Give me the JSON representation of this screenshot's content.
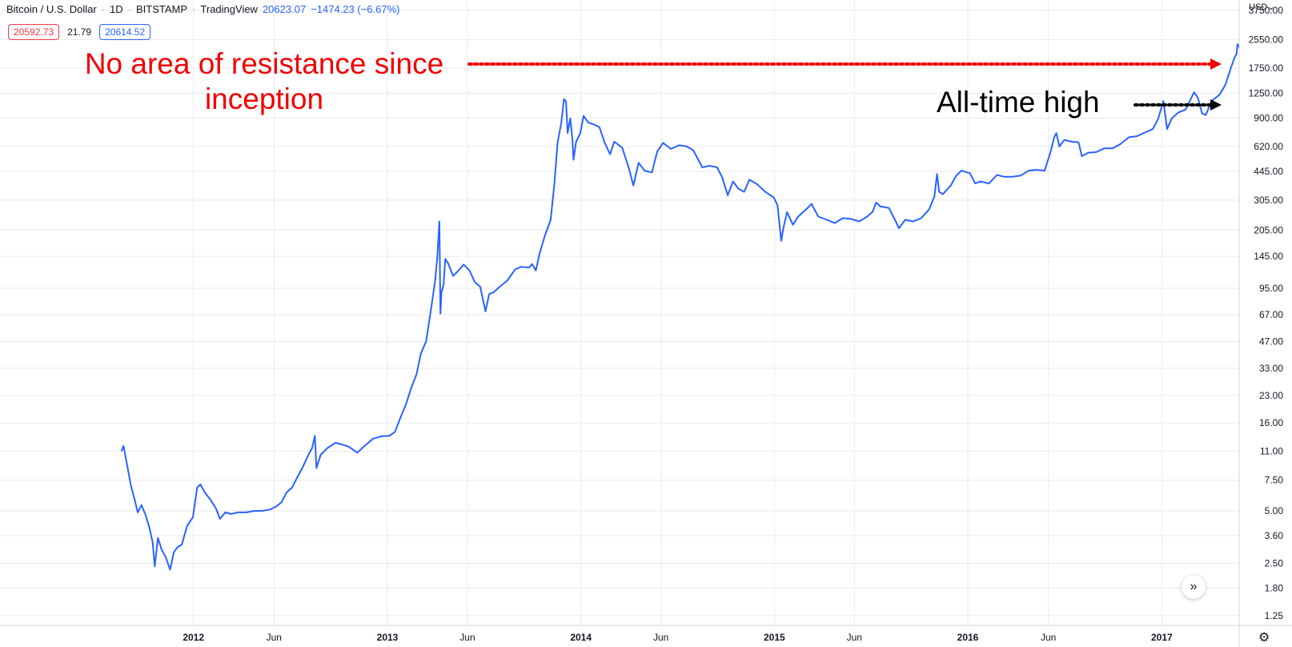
{
  "legend": {
    "symbol": "Bitcoin / U.S. Dollar",
    "interval": "1D",
    "exchange": "BITSTAMP",
    "source": "TradingView",
    "last": "20623.07",
    "change": "−1474.23 (−6.67%)",
    "separator": "·"
  },
  "quote": {
    "bid": "20592.73",
    "spread": "21.79",
    "ask": "20614.52"
  },
  "currency": "USD",
  "currency_icon": "chevron-down-icon",
  "annotations": {
    "red_text": "No area of resistance since inception",
    "black_text": "All-time high"
  },
  "colors": {
    "line": "#2962ff",
    "grid": "#e9eaee",
    "red_annotation": "#f20000",
    "black_annotation": "#000000",
    "bid": "#f23645",
    "ask": "#2962ff"
  },
  "icons": {
    "scroll": "double-chevron-right-icon",
    "settings": "gear-icon"
  },
  "chart_data": {
    "type": "line",
    "title": "",
    "xlabel": "",
    "ylabel": "",
    "y_scale": "log",
    "ylim": [
      1.1,
      4300
    ],
    "xlim": [
      "2011-01-01",
      "2017-05-27"
    ],
    "grid": true,
    "y_ticks": [
      "3750.00",
      "2550.00",
      "1750.00",
      "1250.00",
      "900.00",
      "620.00",
      "445.00",
      "305.00",
      "205.00",
      "145.00",
      "95.00",
      "67.00",
      "47.00",
      "33.00",
      "23.00",
      "16.00",
      "11.00",
      "7.50",
      "5.00",
      "3.60",
      "2.50",
      "1.80",
      "1.25"
    ],
    "x_ticks": [
      {
        "label": "2012",
        "date": "2012-01-01"
      },
      {
        "label": "Jun",
        "date": "2012-06-01"
      },
      {
        "label": "2013",
        "date": "2013-01-01"
      },
      {
        "label": "Jun",
        "date": "2013-06-01"
      },
      {
        "label": "2014",
        "date": "2014-01-01"
      },
      {
        "label": "Jun",
        "date": "2014-06-01"
      },
      {
        "label": "2015",
        "date": "2015-01-01"
      },
      {
        "label": "Jun",
        "date": "2015-06-01"
      },
      {
        "label": "2016",
        "date": "2016-01-01"
      },
      {
        "label": "Jun",
        "date": "2016-06-01"
      },
      {
        "label": "2017",
        "date": "2017-01-01"
      }
    ],
    "series": [
      {
        "color": "#2962ff",
        "points": [
          [
            "2011-08-18",
            11.0
          ],
          [
            "2011-08-22",
            11.8
          ],
          [
            "2011-08-28",
            9.5
          ],
          [
            "2011-09-05",
            7.0
          ],
          [
            "2011-09-12",
            5.8
          ],
          [
            "2011-09-18",
            4.9
          ],
          [
            "2011-09-25",
            5.4
          ],
          [
            "2011-10-03",
            4.7
          ],
          [
            "2011-10-10",
            4.0
          ],
          [
            "2011-10-16",
            3.3
          ],
          [
            "2011-10-20",
            2.4
          ],
          [
            "2011-10-26",
            3.5
          ],
          [
            "2011-11-02",
            3.0
          ],
          [
            "2011-11-10",
            2.7
          ],
          [
            "2011-11-18",
            2.3
          ],
          [
            "2011-11-25",
            2.9
          ],
          [
            "2011-12-02",
            3.1
          ],
          [
            "2011-12-10",
            3.2
          ],
          [
            "2011-12-20",
            4.1
          ],
          [
            "2011-12-31",
            4.6
          ],
          [
            "2012-01-08",
            6.8
          ],
          [
            "2012-01-14",
            7.1
          ],
          [
            "2012-01-22",
            6.4
          ],
          [
            "2012-02-02",
            5.8
          ],
          [
            "2012-02-12",
            5.2
          ],
          [
            "2012-02-20",
            4.5
          ],
          [
            "2012-03-01",
            4.9
          ],
          [
            "2012-03-12",
            4.8
          ],
          [
            "2012-03-25",
            4.9
          ],
          [
            "2012-04-10",
            4.9
          ],
          [
            "2012-04-25",
            5.0
          ],
          [
            "2012-05-10",
            5.0
          ],
          [
            "2012-05-25",
            5.1
          ],
          [
            "2012-06-05",
            5.3
          ],
          [
            "2012-06-15",
            5.6
          ],
          [
            "2012-06-25",
            6.4
          ],
          [
            "2012-07-05",
            6.8
          ],
          [
            "2012-07-15",
            7.8
          ],
          [
            "2012-07-25",
            8.9
          ],
          [
            "2012-08-05",
            10.5
          ],
          [
            "2012-08-12",
            11.5
          ],
          [
            "2012-08-17",
            13.5
          ],
          [
            "2012-08-20",
            8.8
          ],
          [
            "2012-08-28",
            10.5
          ],
          [
            "2012-09-10",
            11.5
          ],
          [
            "2012-09-25",
            12.3
          ],
          [
            "2012-10-05",
            12.1
          ],
          [
            "2012-10-20",
            11.7
          ],
          [
            "2012-11-05",
            10.8
          ],
          [
            "2012-11-20",
            11.9
          ],
          [
            "2012-12-05",
            13.0
          ],
          [
            "2012-12-20",
            13.4
          ],
          [
            "2013-01-05",
            13.5
          ],
          [
            "2013-01-15",
            14.2
          ],
          [
            "2013-01-25",
            17.0
          ],
          [
            "2013-02-05",
            20.5
          ],
          [
            "2013-02-15",
            25.5
          ],
          [
            "2013-02-25",
            30.5
          ],
          [
            "2013-03-05",
            40.0
          ],
          [
            "2013-03-15",
            47.0
          ],
          [
            "2013-03-25",
            75.0
          ],
          [
            "2013-04-01",
            105.0
          ],
          [
            "2013-04-05",
            142.0
          ],
          [
            "2013-04-09",
            230.0
          ],
          [
            "2013-04-11",
            68.0
          ],
          [
            "2013-04-13",
            90.0
          ],
          [
            "2013-04-17",
            100.0
          ],
          [
            "2013-04-20",
            140.0
          ],
          [
            "2013-04-25",
            133.0
          ],
          [
            "2013-05-05",
            112.0
          ],
          [
            "2013-05-15",
            120.0
          ],
          [
            "2013-05-25",
            130.0
          ],
          [
            "2013-06-05",
            120.0
          ],
          [
            "2013-06-15",
            103.0
          ],
          [
            "2013-06-25",
            97.0
          ],
          [
            "2013-07-05",
            70.0
          ],
          [
            "2013-07-12",
            88.0
          ],
          [
            "2013-07-20",
            90.0
          ],
          [
            "2013-08-01",
            97.0
          ],
          [
            "2013-08-15",
            105.0
          ],
          [
            "2013-08-30",
            122.0
          ],
          [
            "2013-09-10",
            126.0
          ],
          [
            "2013-09-25",
            125.0
          ],
          [
            "2013-10-01",
            131.0
          ],
          [
            "2013-10-08",
            120.0
          ],
          [
            "2013-10-15",
            150.0
          ],
          [
            "2013-10-25",
            190.0
          ],
          [
            "2013-11-05",
            235.0
          ],
          [
            "2013-11-12",
            380.0
          ],
          [
            "2013-11-18",
            650.0
          ],
          [
            "2013-11-25",
            850.0
          ],
          [
            "2013-11-30",
            1160.0
          ],
          [
            "2013-12-04",
            1120.0
          ],
          [
            "2013-12-07",
            740.0
          ],
          [
            "2013-12-12",
            900.0
          ],
          [
            "2013-12-16",
            680.0
          ],
          [
            "2013-12-18",
            520.0
          ],
          [
            "2013-12-23",
            660.0
          ],
          [
            "2013-12-31",
            740.0
          ],
          [
            "2014-01-06",
            930.0
          ],
          [
            "2014-01-15",
            850.0
          ],
          [
            "2014-01-25",
            830.0
          ],
          [
            "2014-02-05",
            800.0
          ],
          [
            "2014-02-15",
            650.0
          ],
          [
            "2014-02-25",
            560.0
          ],
          [
            "2014-03-05",
            660.0
          ],
          [
            "2014-03-20",
            610.0
          ],
          [
            "2014-04-01",
            470.0
          ],
          [
            "2014-04-10",
            370.0
          ],
          [
            "2014-04-20",
            500.0
          ],
          [
            "2014-05-01",
            450.0
          ],
          [
            "2014-05-15",
            440.0
          ],
          [
            "2014-05-25",
            580.0
          ],
          [
            "2014-06-05",
            650.0
          ],
          [
            "2014-06-20",
            600.0
          ],
          [
            "2014-07-05",
            630.0
          ],
          [
            "2014-07-20",
            620.0
          ],
          [
            "2014-08-01",
            590.0
          ],
          [
            "2014-08-18",
            470.0
          ],
          [
            "2014-09-01",
            480.0
          ],
          [
            "2014-09-15",
            470.0
          ],
          [
            "2014-09-25",
            410.0
          ],
          [
            "2014-10-05",
            325.0
          ],
          [
            "2014-10-15",
            390.0
          ],
          [
            "2014-10-25",
            355.0
          ],
          [
            "2014-11-05",
            340.0
          ],
          [
            "2014-11-15",
            400.0
          ],
          [
            "2014-11-30",
            375.0
          ],
          [
            "2014-12-15",
            340.0
          ],
          [
            "2014-12-31",
            315.0
          ],
          [
            "2015-01-07",
            285.0
          ],
          [
            "2015-01-14",
            178.0
          ],
          [
            "2015-01-18",
            210.0
          ],
          [
            "2015-01-25",
            260.0
          ],
          [
            "2015-02-05",
            220.0
          ],
          [
            "2015-02-15",
            245.0
          ],
          [
            "2015-03-05",
            275.0
          ],
          [
            "2015-03-12",
            290.0
          ],
          [
            "2015-03-25",
            245.0
          ],
          [
            "2015-04-10",
            235.0
          ],
          [
            "2015-04-25",
            225.0
          ],
          [
            "2015-05-10",
            240.0
          ],
          [
            "2015-05-25",
            238.0
          ],
          [
            "2015-06-10",
            230.0
          ],
          [
            "2015-06-25",
            245.0
          ],
          [
            "2015-07-05",
            260.0
          ],
          [
            "2015-07-12",
            295.0
          ],
          [
            "2015-07-20",
            280.0
          ],
          [
            "2015-08-05",
            275.0
          ],
          [
            "2015-08-18",
            230.0
          ],
          [
            "2015-08-24",
            210.0
          ],
          [
            "2015-09-05",
            235.0
          ],
          [
            "2015-09-20",
            230.0
          ],
          [
            "2015-10-05",
            240.0
          ],
          [
            "2015-10-20",
            270.0
          ],
          [
            "2015-10-30",
            320.0
          ],
          [
            "2015-11-04",
            430.0
          ],
          [
            "2015-11-08",
            340.0
          ],
          [
            "2015-11-15",
            330.0
          ],
          [
            "2015-11-30",
            370.0
          ],
          [
            "2015-12-10",
            420.0
          ],
          [
            "2015-12-20",
            450.0
          ],
          [
            "2016-01-05",
            435.0
          ],
          [
            "2016-01-15",
            380.0
          ],
          [
            "2016-01-25",
            390.0
          ],
          [
            "2016-02-10",
            380.0
          ],
          [
            "2016-02-25",
            425.0
          ],
          [
            "2016-03-10",
            415.0
          ],
          [
            "2016-03-25",
            415.0
          ],
          [
            "2016-04-10",
            422.0
          ],
          [
            "2016-04-25",
            450.0
          ],
          [
            "2016-05-10",
            455.0
          ],
          [
            "2016-05-25",
            450.0
          ],
          [
            "2016-06-05",
            575.0
          ],
          [
            "2016-06-12",
            700.0
          ],
          [
            "2016-06-16",
            740.0
          ],
          [
            "2016-06-22",
            620.0
          ],
          [
            "2016-07-01",
            675.0
          ],
          [
            "2016-07-15",
            660.0
          ],
          [
            "2016-07-28",
            655.0
          ],
          [
            "2016-08-03",
            545.0
          ],
          [
            "2016-08-15",
            570.0
          ],
          [
            "2016-08-30",
            575.0
          ],
          [
            "2016-09-15",
            605.0
          ],
          [
            "2016-09-30",
            605.0
          ],
          [
            "2016-10-15",
            640.0
          ],
          [
            "2016-10-31",
            700.0
          ],
          [
            "2016-11-15",
            710.0
          ],
          [
            "2016-11-30",
            745.0
          ],
          [
            "2016-12-15",
            780.0
          ],
          [
            "2016-12-25",
            890.0
          ],
          [
            "2017-01-04",
            1130.0
          ],
          [
            "2017-01-11",
            780.0
          ],
          [
            "2017-01-20",
            900.0
          ],
          [
            "2017-02-01",
            970.0
          ],
          [
            "2017-02-15",
            1010.0
          ],
          [
            "2017-03-03",
            1270.0
          ],
          [
            "2017-03-10",
            1180.0
          ],
          [
            "2017-03-18",
            960.0
          ],
          [
            "2017-03-25",
            940.0
          ],
          [
            "2017-04-05",
            1130.0
          ],
          [
            "2017-04-20",
            1230.0
          ],
          [
            "2017-05-01",
            1400.0
          ],
          [
            "2017-05-10",
            1700.0
          ],
          [
            "2017-05-18",
            2000.0
          ],
          [
            "2017-05-22",
            2100.0
          ],
          [
            "2017-05-24",
            2400.0
          ],
          [
            "2017-05-26",
            2300.0
          ]
        ]
      }
    ]
  }
}
